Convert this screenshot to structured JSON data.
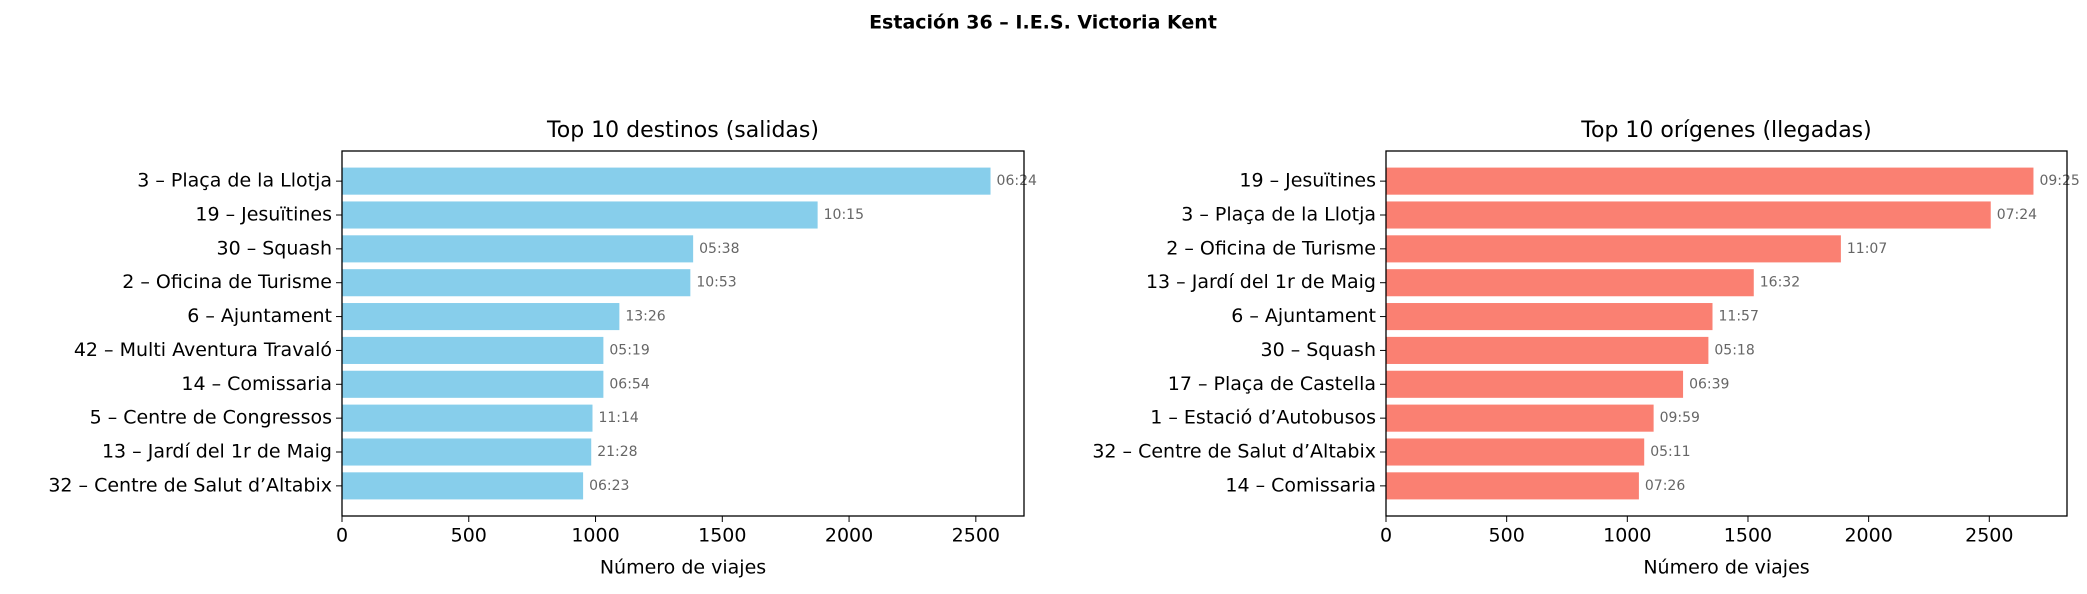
{
  "title": "Estación 36 – I.E.S. Victoria Kent",
  "chart_data": [
    {
      "type": "barh",
      "title": "Top 10 destinos (salidas)",
      "xlabel": "Número de viajes",
      "color": "#87ceeb",
      "categories": [
        "3 – Plaça de la Llotja",
        "19 – Jesuïtines",
        "30 – Squash",
        "2 – Oficina de Turisme",
        "6 – Ajuntament",
        "42 – Multi Aventura Travaló",
        "14 – Comissaria",
        "5 – Centre de Congressos",
        "13 – Jardí del 1r de Maig",
        "32 – Centre de Salut d’Altabix"
      ],
      "values": [
        2558,
        1876,
        1385,
        1374,
        1094,
        1031,
        1031,
        988,
        983,
        951
      ],
      "bar_annotations": [
        "06:24",
        "10:15",
        "05:38",
        "10:53",
        "13:26",
        "05:19",
        "06:54",
        "11:14",
        "21:28",
        "06:23"
      ],
      "xlim": [
        0,
        2690
      ],
      "xticks": [
        0,
        500,
        1000,
        1500,
        2000,
        2500
      ]
    },
    {
      "type": "barh",
      "title": "Top 10 orígenes (llegadas)",
      "xlabel": "Número de viajes",
      "color": "#fa8072",
      "categories": [
        "19 – Jesuïtines",
        "3 – Plaça de la Llotja",
        "2 – Oficina de Turisme",
        "13 – Jardí del 1r de Maig",
        "6 – Ajuntament",
        "30 – Squash",
        "17 – Plaça de Castella",
        "1 – Estació d’Autobusos",
        "32 – Centre de Salut d’Altabix",
        "14 – Comissaria"
      ],
      "values": [
        2683,
        2506,
        1885,
        1524,
        1353,
        1336,
        1231,
        1109,
        1070,
        1048
      ],
      "bar_annotations": [
        "09:25",
        "07:24",
        "11:07",
        "16:32",
        "11:57",
        "05:18",
        "06:39",
        "09:59",
        "05:11",
        "07:26"
      ],
      "xlim": [
        0,
        2822
      ],
      "xticks": [
        0,
        500,
        1000,
        1500,
        2000,
        2500
      ]
    }
  ]
}
